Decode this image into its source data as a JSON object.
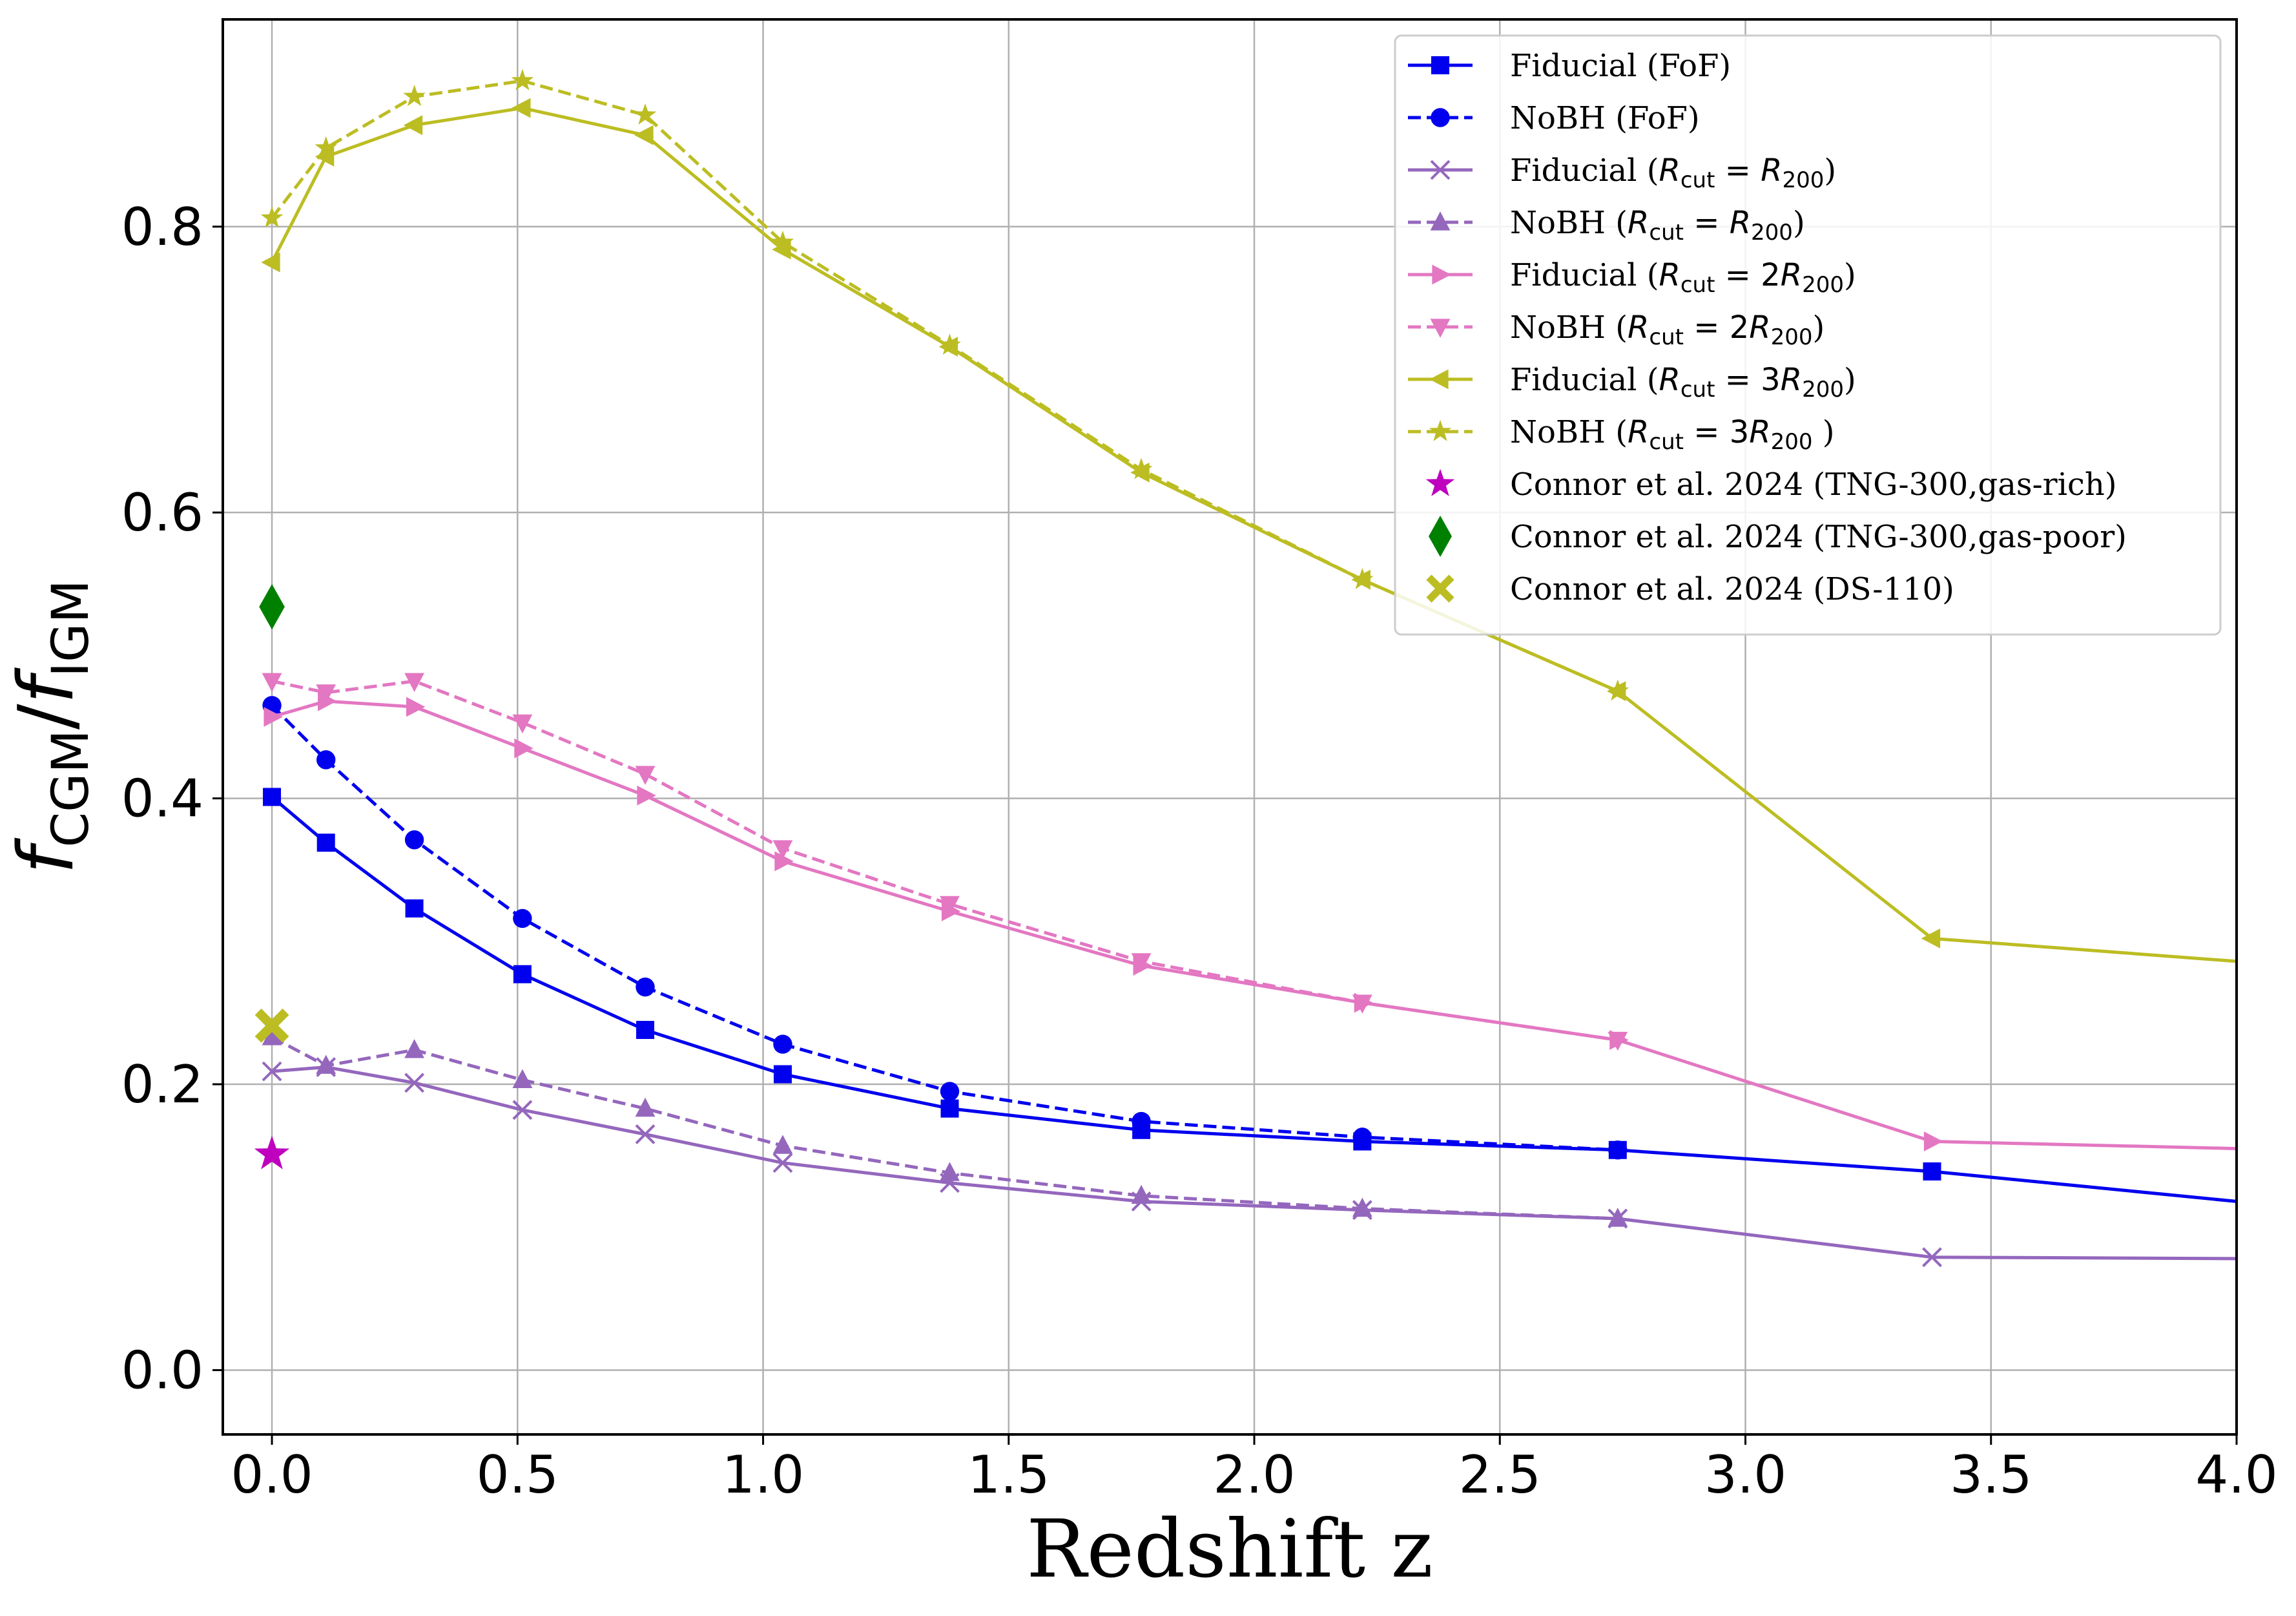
{
  "chart_data": {
    "type": "line",
    "title": "",
    "xlabel": "Redshift z",
    "ylabel": "f_CGM/f_IGM",
    "ylabel_parts": {
      "f1": "f",
      "s1": "CGM",
      "slash": "/",
      "f2": "f",
      "s2": "IGM"
    },
    "xlim": [
      -0.1,
      4.0
    ],
    "ylim": [
      -0.045,
      0.945
    ],
    "xticks": [
      0.0,
      0.5,
      1.0,
      1.5,
      2.0,
      2.5,
      3.0,
      3.5,
      4.0
    ],
    "xtick_labels": [
      "0.0",
      "0.5",
      "1.0",
      "1.5",
      "2.0",
      "2.5",
      "3.0",
      "3.5",
      "4.0"
    ],
    "yticks": [
      0.0,
      0.2,
      0.4,
      0.6,
      0.8
    ],
    "ytick_labels": [
      "0.0",
      "0.2",
      "0.4",
      "0.6",
      "0.8"
    ],
    "grid": true,
    "legend_position": "top-right",
    "series": [
      {
        "name": "Fiducial (FoF)",
        "legend": {
          "pre": "Fiducial (FoF)"
        },
        "color": "#0000ee",
        "dash": "solid",
        "marker": "square",
        "x": [
          0.0,
          0.11,
          0.29,
          0.51,
          0.76,
          1.04,
          1.38,
          1.77,
          2.22,
          2.74,
          3.38,
          4.0
        ],
        "y": [
          0.401,
          0.369,
          0.323,
          0.277,
          0.238,
          0.207,
          0.183,
          0.168,
          0.16,
          0.154,
          0.139,
          0.118
        ],
        "x_marked_upto": 3.38
      },
      {
        "name": "NoBH (FoF)",
        "legend": {
          "pre": "NoBH (FoF)"
        },
        "color": "#0000ee",
        "dash": "dashed",
        "marker": "circle",
        "x": [
          0.0,
          0.11,
          0.29,
          0.51,
          0.76,
          1.04,
          1.38,
          1.77,
          2.22,
          2.74
        ],
        "y": [
          0.465,
          0.427,
          0.371,
          0.316,
          0.268,
          0.228,
          0.195,
          0.174,
          0.163,
          0.154
        ]
      },
      {
        "name": "Fiducial (R_cut = R_200)",
        "legend": {
          "pre": "Fiducial (",
          "sub": "cut",
          "eq": " = ",
          "coef": "",
          "sub2": "200",
          "post": ")"
        },
        "color": "#9467bd",
        "dash": "solid",
        "marker": "x",
        "x": [
          0.0,
          0.11,
          0.29,
          0.51,
          0.76,
          1.04,
          1.38,
          1.77,
          2.22,
          2.74,
          3.38,
          4.0
        ],
        "y": [
          0.209,
          0.212,
          0.201,
          0.182,
          0.165,
          0.145,
          0.131,
          0.118,
          0.112,
          0.106,
          0.079,
          0.078
        ],
        "x_marked_upto": 3.38
      },
      {
        "name": "NoBH (R_cut = R_200)",
        "legend": {
          "pre": "NoBH (",
          "sub": "cut",
          "eq": " = ",
          "coef": "",
          "sub2": "200",
          "post": ")"
        },
        "color": "#9467bd",
        "dash": "dashed",
        "marker": "triangle-up",
        "x": [
          0.0,
          0.11,
          0.29,
          0.51,
          0.76,
          1.04,
          1.38,
          1.77,
          2.22,
          2.74
        ],
        "y": [
          0.233,
          0.213,
          0.224,
          0.203,
          0.183,
          0.157,
          0.138,
          0.122,
          0.113,
          0.106
        ]
      },
      {
        "name": "Fiducial (R_cut = 2R_200)",
        "legend": {
          "pre": "Fiducial (",
          "sub": "cut",
          "eq": " = ",
          "coef": "2",
          "sub2": "200",
          "post": ")"
        },
        "color": "#e377c2",
        "dash": "solid",
        "marker": "triangle-right",
        "x": [
          0.0,
          0.11,
          0.29,
          0.51,
          0.76,
          1.04,
          1.38,
          1.77,
          2.22,
          2.74,
          3.38,
          4.0
        ],
        "y": [
          0.457,
          0.468,
          0.464,
          0.435,
          0.402,
          0.356,
          0.321,
          0.283,
          0.257,
          0.231,
          0.16,
          0.155
        ],
        "x_marked_upto": 3.38
      },
      {
        "name": "NoBH (R_cut = 2R_200)",
        "legend": {
          "pre": "NoBH (",
          "sub": "cut",
          "eq": " = ",
          "coef": "2",
          "sub2": "200",
          "post": ")"
        },
        "color": "#e377c2",
        "dash": "dashed",
        "marker": "triangle-down",
        "x": [
          0.0,
          0.11,
          0.29,
          0.51,
          0.76,
          1.04,
          1.38,
          1.77,
          2.22,
          2.74
        ],
        "y": [
          0.482,
          0.474,
          0.482,
          0.453,
          0.417,
          0.365,
          0.326,
          0.286,
          0.257,
          0.231
        ]
      },
      {
        "name": "Fiducial (R_cut = 3R_200)",
        "legend": {
          "pre": "Fiducial (",
          "sub": "cut",
          "eq": " = ",
          "coef": "3",
          "sub2": "200",
          "post": ")"
        },
        "color": "#bcbd22",
        "dash": "solid",
        "marker": "triangle-left",
        "x": [
          0.0,
          0.11,
          0.29,
          0.51,
          0.76,
          1.04,
          1.38,
          1.77,
          2.22,
          2.74,
          3.38,
          4.0
        ],
        "y": [
          0.775,
          0.849,
          0.871,
          0.883,
          0.864,
          0.784,
          0.716,
          0.628,
          0.553,
          0.475,
          0.302,
          0.286
        ],
        "x_marked_upto": 3.38
      },
      {
        "name": "NoBH (R_cut = 3R_200 )",
        "legend": {
          "pre": "NoBH (",
          "sub": "cut",
          "eq": " = ",
          "coef": "3",
          "sub2": "200",
          "post": " )"
        },
        "color": "#bcbd22",
        "dash": "dashed",
        "marker": "star",
        "x": [
          0.0,
          0.11,
          0.29,
          0.51,
          0.76,
          1.04,
          1.38,
          1.77,
          2.22,
          2.74
        ],
        "y": [
          0.806,
          0.855,
          0.891,
          0.902,
          0.878,
          0.789,
          0.717,
          0.63,
          0.553,
          0.475
        ]
      }
    ],
    "points": [
      {
        "name": "Connor et al. 2024 (TNG-300,gas-rich)",
        "x": 0.0,
        "y": 0.151,
        "color": "#bf00bf",
        "marker": "star"
      },
      {
        "name": "Connor et al. 2024 (TNG-300,gas-poor)",
        "x": 0.0,
        "y": 0.534,
        "color": "#008000",
        "marker": "thin-diamond"
      },
      {
        "name": "Connor et al. 2024 (DS-110)",
        "x": 0.0,
        "y": 0.241,
        "color": "#bcbd22",
        "marker": "x-filled"
      }
    ]
  }
}
